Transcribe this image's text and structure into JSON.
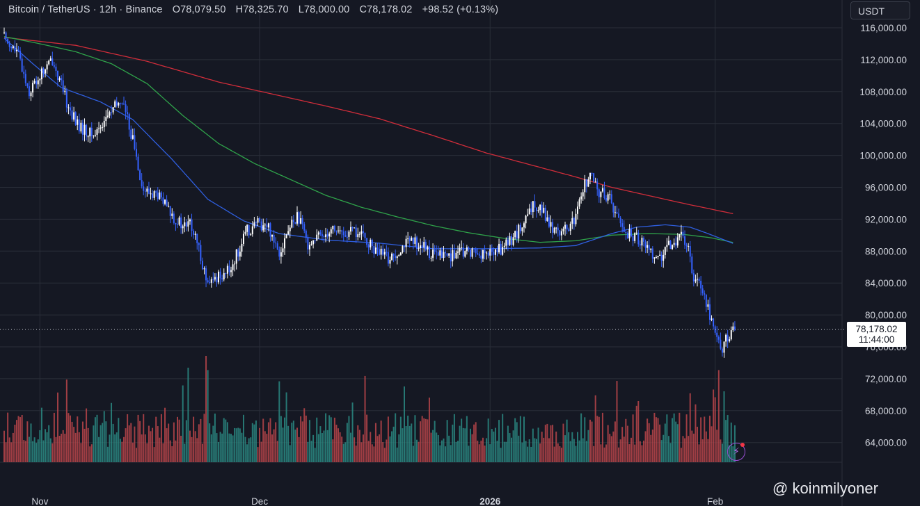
{
  "header": {
    "symbol": "Bitcoin / TetherUS · 12h · Binance",
    "open": "O78,079.50",
    "high": "H78,325.70",
    "low": "L78,000.00",
    "close": "C78,178.02",
    "change": "+98.52 (+0.13%)"
  },
  "currency_button": "USDT",
  "price_tag": {
    "price": "78,178.02",
    "countdown": "11:44:00"
  },
  "watermark": "@ koinmilyoner",
  "colors": {
    "up": "#ffffff",
    "down": "#3562ff",
    "ma_fast": "#2f5fe0",
    "ma_mid": "#2fa34a",
    "ma_slow": "#d12d3a",
    "vol_up": "#2a8a82",
    "vol_down": "#b8454a",
    "grid": "#2a2e39",
    "bg": "#151823"
  },
  "chart_data": {
    "type": "candlestick",
    "timeframe": "12h",
    "x_tick_labels": [
      "Nov",
      "Dec",
      "2026",
      "Feb"
    ],
    "y_tick_labels": [
      "116,000.00",
      "112,000.00",
      "108,000.00",
      "104,000.00",
      "100,000.00",
      "96,000.00",
      "92,000.00",
      "88,000.00",
      "84,000.00",
      "80,000.00",
      "76,000.00",
      "72,000.00",
      "68,000.00",
      "64,000.00"
    ],
    "ylim": [
      61600,
      117000
    ],
    "last_price": 78178.02,
    "close_path": [
      [
        0,
        115000
      ],
      [
        8,
        112500
      ],
      [
        14,
        108000
      ],
      [
        20,
        110000
      ],
      [
        27,
        112000
      ],
      [
        36,
        106000
      ],
      [
        42,
        103500
      ],
      [
        50,
        102500
      ],
      [
        58,
        105000
      ],
      [
        66,
        107000
      ],
      [
        72,
        102000
      ],
      [
        78,
        95500
      ],
      [
        86,
        95000
      ],
      [
        94,
        92500
      ],
      [
        100,
        91000
      ],
      [
        104,
        91500
      ],
      [
        110,
        87500
      ],
      [
        114,
        83500
      ],
      [
        120,
        85000
      ],
      [
        126,
        85500
      ],
      [
        136,
        90500
      ],
      [
        142,
        91500
      ],
      [
        148,
        91000
      ],
      [
        154,
        88000
      ],
      [
        160,
        91000
      ],
      [
        164,
        92500
      ],
      [
        170,
        89000
      ],
      [
        178,
        90000
      ],
      [
        184,
        91000
      ],
      [
        190,
        90000
      ],
      [
        196,
        90500
      ],
      [
        202,
        89500
      ],
      [
        208,
        88000
      ],
      [
        216,
        87000
      ],
      [
        224,
        89000
      ],
      [
        232,
        89000
      ],
      [
        240,
        87500
      ],
      [
        250,
        87500
      ],
      [
        262,
        88000
      ],
      [
        270,
        87500
      ],
      [
        280,
        88500
      ],
      [
        290,
        91000
      ],
      [
        296,
        93500
      ],
      [
        300,
        94000
      ],
      [
        306,
        91000
      ],
      [
        314,
        90500
      ],
      [
        320,
        92000
      ],
      [
        324,
        96000
      ],
      [
        328,
        97500
      ],
      [
        332,
        95500
      ],
      [
        338,
        95000
      ],
      [
        342,
        93000
      ],
      [
        346,
        91000
      ],
      [
        350,
        90000
      ],
      [
        356,
        89500
      ],
      [
        362,
        88000
      ],
      [
        368,
        87000
      ],
      [
        372,
        88500
      ],
      [
        378,
        90000
      ],
      [
        382,
        89000
      ],
      [
        386,
        85000
      ],
      [
        390,
        84000
      ],
      [
        394,
        81000
      ],
      [
        398,
        77500
      ],
      [
        402,
        76000
      ],
      [
        406,
        77500
      ],
      [
        410,
        78178
      ]
    ],
    "ma_fast": [
      [
        0,
        114700
      ],
      [
        16,
        111500
      ],
      [
        32,
        108500
      ],
      [
        54,
        106700
      ],
      [
        72,
        104500
      ],
      [
        94,
        99500
      ],
      [
        114,
        94500
      ],
      [
        134,
        91800
      ],
      [
        154,
        90200
      ],
      [
        180,
        89400
      ],
      [
        210,
        89000
      ],
      [
        240,
        88300
      ],
      [
        270,
        88300
      ],
      [
        300,
        88400
      ],
      [
        320,
        88700
      ],
      [
        340,
        90200
      ],
      [
        354,
        91000
      ],
      [
        370,
        91300
      ],
      [
        384,
        91000
      ],
      [
        394,
        90200
      ],
      [
        402,
        89500
      ],
      [
        410,
        88800
      ]
    ],
    "ma_mid": [
      [
        0,
        114900
      ],
      [
        20,
        114000
      ],
      [
        40,
        113000
      ],
      [
        60,
        111500
      ],
      [
        80,
        109000
      ],
      [
        100,
        105000
      ],
      [
        120,
        101500
      ],
      [
        140,
        99000
      ],
      [
        160,
        97000
      ],
      [
        180,
        95000
      ],
      [
        200,
        93500
      ],
      [
        220,
        92300
      ],
      [
        240,
        91200
      ],
      [
        260,
        90300
      ],
      [
        280,
        89600
      ],
      [
        300,
        89100
      ],
      [
        320,
        89300
      ],
      [
        340,
        90000
      ],
      [
        360,
        90200
      ],
      [
        380,
        90100
      ],
      [
        395,
        89700
      ],
      [
        410,
        89000
      ]
    ],
    "ma_slow": [
      [
        0,
        114800
      ],
      [
        40,
        113800
      ],
      [
        80,
        111800
      ],
      [
        120,
        109200
      ],
      [
        150,
        107700
      ],
      [
        180,
        106200
      ],
      [
        210,
        104600
      ],
      [
        240,
        102500
      ],
      [
        270,
        100300
      ],
      [
        300,
        98500
      ],
      [
        320,
        97300
      ],
      [
        340,
        96000
      ],
      [
        360,
        95000
      ],
      [
        380,
        94000
      ],
      [
        395,
        93300
      ],
      [
        410,
        92600
      ]
    ],
    "candle_count": 410,
    "volume_spikes": {
      "index_values": [
        [
          35,
          0.7
        ],
        [
          100,
          0.65
        ],
        [
          103,
          0.8
        ],
        [
          113,
          0.9
        ],
        [
          114,
          0.78
        ],
        [
          398,
          0.55
        ],
        [
          400,
          0.78
        ],
        [
          403,
          0.6
        ]
      ]
    }
  }
}
